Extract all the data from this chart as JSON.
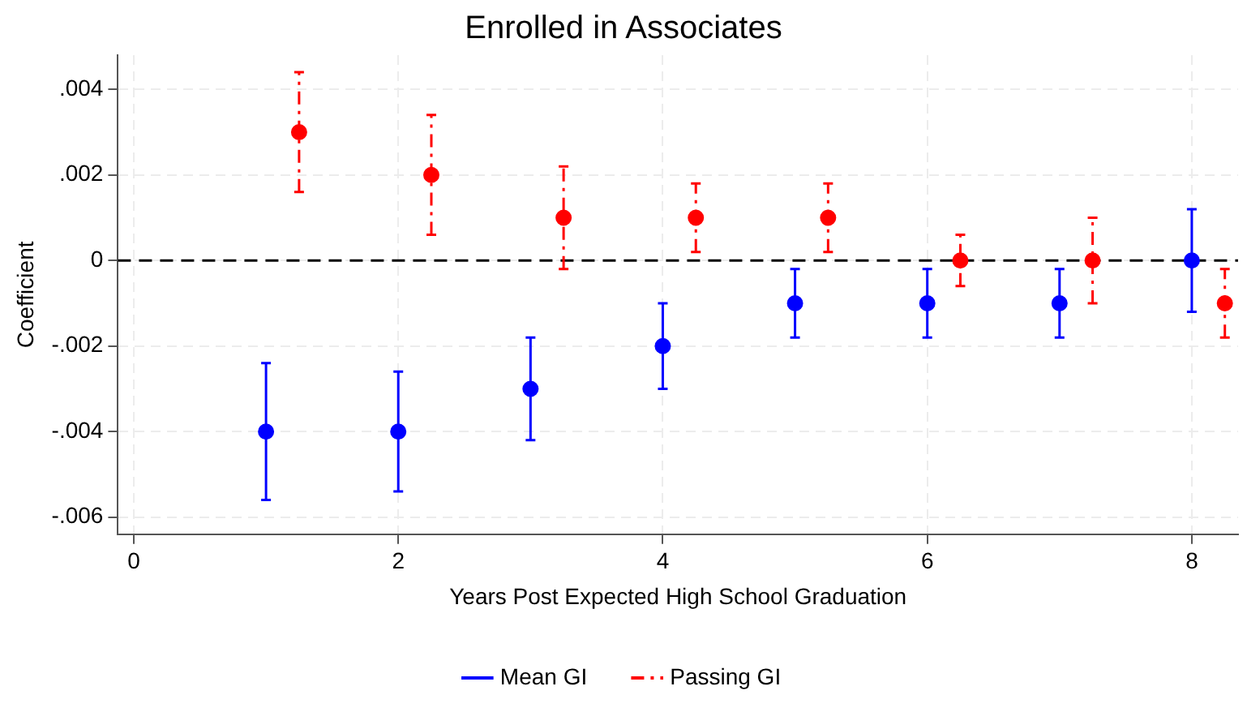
{
  "chart_data": {
    "type": "scatter",
    "title": "Enrolled in Associates",
    "xlabel": "Years Post Expected High School Graduation",
    "ylabel": "Coefficient",
    "xlim": [
      -0.12,
      8.35
    ],
    "xticks": [
      0,
      2,
      4,
      6,
      8
    ],
    "ylim": [
      -0.0064,
      0.0048
    ],
    "yticks": [
      {
        "value": -0.006,
        "label": "-.006"
      },
      {
        "value": -0.004,
        "label": "-.004"
      },
      {
        "value": -0.002,
        "label": "-.002"
      },
      0,
      {
        "value": 0.002,
        "label": ".002"
      },
      {
        "value": 0.004,
        "label": ".004"
      }
    ],
    "grid": true,
    "legend": "bottom",
    "marker": "circle",
    "ref_lines": [
      {
        "axis": "y",
        "value": 0,
        "color": "#000000",
        "line_style": "dashed"
      }
    ],
    "series": [
      {
        "name": "Mean GI",
        "color": "#0000ff",
        "line_style": "solid",
        "x": [
          1,
          2,
          3,
          4,
          5,
          6,
          7,
          8
        ],
        "values": [
          -0.004,
          -0.004,
          -0.003,
          -0.002,
          -0.001,
          -0.001,
          -0.001,
          0
        ],
        "errors": [
          [
            -0.0056,
            -0.0024
          ],
          [
            -0.0054,
            -0.0026
          ],
          [
            -0.0042,
            -0.0018
          ],
          [
            -0.003,
            -0.001
          ],
          [
            -0.0018,
            -0.0002
          ],
          [
            -0.0018,
            -0.0002
          ],
          [
            -0.0018,
            -0.0002
          ],
          [
            -0.0012,
            0.0012
          ]
        ]
      },
      {
        "name": "Passing GI",
        "color": "#ff0000",
        "line_style": "dashed",
        "x": [
          1.25,
          2.25,
          3.25,
          4.25,
          5.25,
          6.25,
          7.25,
          8.25
        ],
        "values": [
          0.003,
          0.002,
          0.001,
          0.001,
          0.001,
          0,
          0,
          -0.001
        ],
        "errors": [
          [
            0.0016,
            0.0044
          ],
          [
            0.0006,
            0.0034
          ],
          [
            -0.0002,
            0.0022
          ],
          [
            0.0002,
            0.0018
          ],
          [
            0.0002,
            0.0018
          ],
          [
            -0.0006,
            0.0006
          ],
          [
            -0.001,
            0.001
          ],
          [
            -0.0018,
            -0.0002
          ]
        ]
      }
    ]
  }
}
